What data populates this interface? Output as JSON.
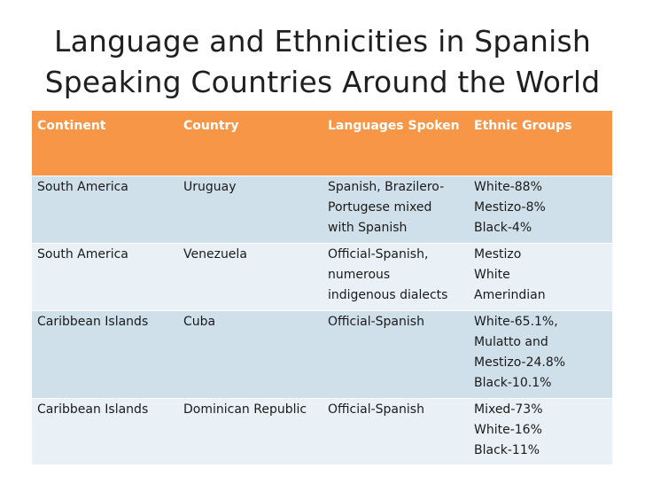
{
  "slide": {
    "title_line1": "Language and Ethnicities in Spanish",
    "title_line2": "Speaking Countries Around the World"
  },
  "table": {
    "headers": [
      "Continent",
      "Country",
      "Languages Spoken",
      "Ethnic Groups"
    ],
    "rows": [
      {
        "continent": "South America",
        "country": "Uruguay",
        "languages": [
          "Spanish, Brazilero-",
          "Portugese mixed",
          "with Spanish"
        ],
        "ethnic": [
          "White-88%",
          "Mestizo-8%",
          "Black-4%"
        ]
      },
      {
        "continent": "South America",
        "country": "Venezuela",
        "languages": [
          "Official-Spanish,",
          "numerous",
          "indigenous dialects"
        ],
        "ethnic": [
          "Mestizo",
          "White",
          "Amerindian"
        ]
      },
      {
        "continent": "Caribbean Islands",
        "country": "Cuba",
        "languages": [
          "Official-Spanish"
        ],
        "ethnic": [
          "White-65.1%,",
          "Mulatto and",
          "Mestizo-24.8%",
          "Black-10.1%"
        ]
      },
      {
        "continent": "Caribbean Islands",
        "country": "Dominican Republic",
        "languages": [
          "Official-Spanish"
        ],
        "ethnic": [
          "Mixed-73%",
          "White-16%",
          "Black-11%"
        ]
      }
    ]
  },
  "colors": {
    "header_bg": "#f79646",
    "row_dark": "#d0e0ea",
    "row_light": "#e9f1f6"
  }
}
